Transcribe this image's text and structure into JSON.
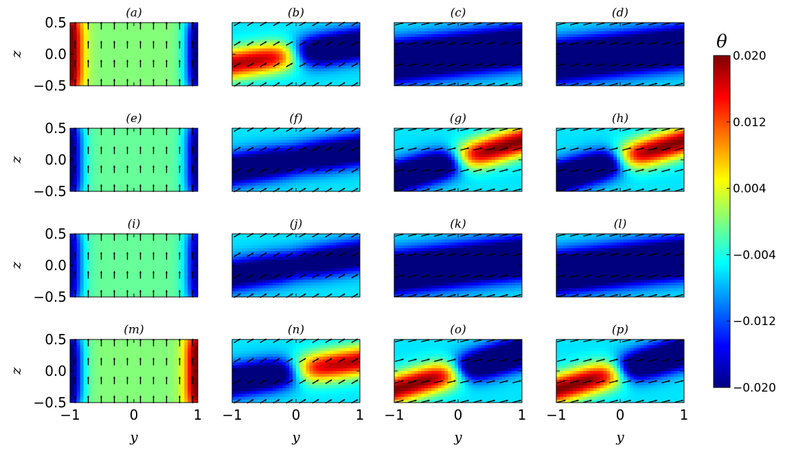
{
  "chart_data": {
    "type": "heatmap",
    "grid": false,
    "xlabel": "y",
    "ylabel": "z",
    "xlim": [
      -1,
      1
    ],
    "ylim": [
      -0.5,
      0.5
    ],
    "x_ticks": [
      "−1",
      "0",
      "1"
    ],
    "y_ticks": [
      "0.5",
      "0.0",
      "−0.5"
    ],
    "colorbar": {
      "label": "θ",
      "range": [
        -0.02,
        0.02
      ],
      "ticks": [
        "0.020",
        "0.012",
        "0.004",
        "−0.004",
        "−0.012",
        "−0.020"
      ],
      "colormap": "jet",
      "colors": [
        "#00007f",
        "#0000ff",
        "#007fff",
        "#00ffff",
        "#7fff7f",
        "#ffff00",
        "#ff7f00",
        "#ff0000",
        "#7f0000"
      ]
    },
    "panels": [
      {
        "label": "(a)",
        "tilt": 0.0,
        "amp": 0.022,
        "pattern": "side-columns",
        "left_sign": 1,
        "right_sign": -1,
        "background": 0.0002,
        "arrows": "vertical"
      },
      {
        "label": "(b)",
        "tilt": 0.45,
        "amp": 0.024,
        "pattern": "tilted-blobs",
        "left_sign": 1,
        "right_sign": -1,
        "background": -0.006,
        "arrows": "inclined"
      },
      {
        "label": "(c)",
        "tilt": 1.0,
        "amp": 0.03,
        "pattern": "band",
        "band_sign": -1,
        "background": -0.006,
        "arrows": "horizontal"
      },
      {
        "label": "(d)",
        "tilt": 1.0,
        "amp": 0.03,
        "pattern": "band",
        "band_sign": -1,
        "background": -0.006,
        "arrows": "horizontal"
      },
      {
        "label": "(e)",
        "tilt": 0.0,
        "amp": 0.02,
        "pattern": "side-columns",
        "left_sign": -1,
        "right_sign": -1,
        "background": -0.001,
        "arrows": "vertical"
      },
      {
        "label": "(f)",
        "tilt": 0.45,
        "amp": 0.022,
        "pattern": "tilted-blobs",
        "left_sign": -1,
        "right_sign": -1,
        "background": -0.006,
        "arrows": "inclined"
      },
      {
        "label": "(g)",
        "tilt": 0.85,
        "amp": 0.026,
        "pattern": "tilted-blobs",
        "left_sign": -1,
        "right_sign": 1,
        "background": -0.006,
        "arrows": "horizontal"
      },
      {
        "label": "(h)",
        "tilt": 0.85,
        "amp": 0.026,
        "pattern": "tilted-blobs",
        "left_sign": -1,
        "right_sign": 1,
        "background": -0.006,
        "arrows": "horizontal"
      },
      {
        "label": "(i)",
        "tilt": 0.0,
        "amp": 0.018,
        "pattern": "side-columns",
        "left_sign": -1,
        "right_sign": -1,
        "background": -0.001,
        "arrows": "vertical"
      },
      {
        "label": "(j)",
        "tilt": 0.45,
        "amp": 0.02,
        "pattern": "tilted-blobs",
        "left_sign": -1,
        "right_sign": -1,
        "background": -0.006,
        "arrows": "inclined"
      },
      {
        "label": "(k)",
        "tilt": 1.0,
        "amp": 0.03,
        "pattern": "band",
        "band_sign": -1,
        "background": -0.006,
        "arrows": "horizontal"
      },
      {
        "label": "(l)",
        "tilt": 1.0,
        "amp": 0.03,
        "pattern": "band",
        "band_sign": -1,
        "background": -0.006,
        "arrows": "horizontal"
      },
      {
        "label": "(m)",
        "tilt": 0.0,
        "amp": 0.022,
        "pattern": "side-columns",
        "left_sign": -1,
        "right_sign": 1,
        "background": 0.0002,
        "arrows": "vertical"
      },
      {
        "label": "(n)",
        "tilt": 0.45,
        "amp": 0.024,
        "pattern": "tilted-blobs",
        "left_sign": -1,
        "right_sign": 1,
        "background": -0.006,
        "arrows": "inclined"
      },
      {
        "label": "(o)",
        "tilt": 0.85,
        "amp": 0.026,
        "pattern": "tilted-blobs",
        "left_sign": 1,
        "right_sign": -1,
        "background": -0.006,
        "arrows": "horizontal"
      },
      {
        "label": "(p)",
        "tilt": 0.85,
        "amp": 0.026,
        "pattern": "tilted-blobs",
        "left_sign": 1,
        "right_sign": -1,
        "background": -0.006,
        "arrows": "horizontal"
      }
    ]
  }
}
